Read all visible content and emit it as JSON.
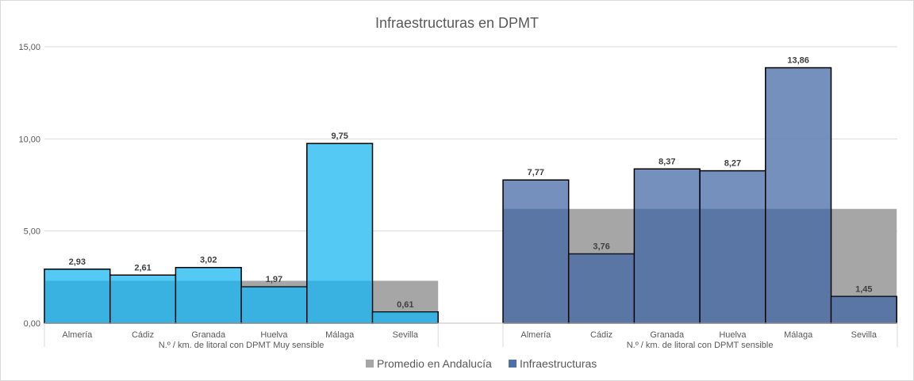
{
  "chart_data": {
    "type": "bar",
    "title": "Infraestructuras en DPMT",
    "ylim": [
      0,
      15
    ],
    "yticks": [
      "0,00",
      "5,00",
      "10,00",
      "15,00"
    ],
    "ytick_values": [
      0,
      5,
      10,
      15
    ],
    "grid": true,
    "legend_position": "bottom",
    "groups": [
      {
        "label": "N.º / km. de litoral con DPMT Muy sensible",
        "categories": [
          "Almería",
          "Cádiz",
          "Granada",
          "Huelva",
          "Málaga",
          "Sevilla"
        ],
        "infraestructuras": [
          2.93,
          2.61,
          3.02,
          1.97,
          9.75,
          0.61
        ],
        "value_labels": [
          "2,93",
          "2,61",
          "3,02",
          "1,97",
          "9,75",
          "0,61"
        ],
        "promedio": 2.3,
        "color": "#4ac6f3"
      },
      {
        "label": "N.º / km. de litoral con DPMT sensible",
        "categories": [
          "Almería",
          "Cádiz",
          "Granada",
          "Huelva",
          "Málaga",
          "Sevilla"
        ],
        "infraestructuras": [
          7.77,
          3.76,
          8.37,
          8.27,
          13.86,
          1.45
        ],
        "value_labels": [
          "7,77",
          "3,76",
          "8,37",
          "8,27",
          "13,86",
          "1,45"
        ],
        "promedio": 6.2,
        "color": "#6f8ab9"
      }
    ],
    "series": [
      {
        "name": "Promedio en Andalucía",
        "color": "#a6a6a6"
      },
      {
        "name": "Infraestructuras",
        "color": "#4f6fa8"
      }
    ]
  }
}
